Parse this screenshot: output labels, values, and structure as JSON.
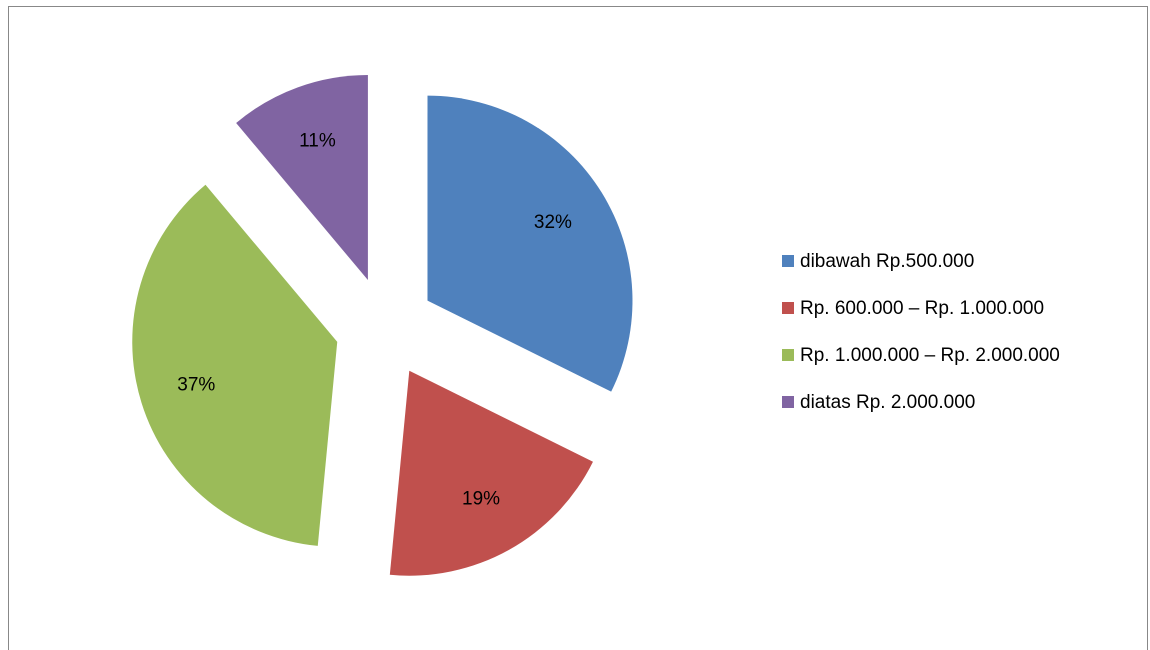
{
  "chart_data": {
    "type": "pie",
    "categories": [
      "dibawah Rp.500.000",
      "Rp. 600.000 – Rp. 1.000.000",
      "Rp. 1.000.000 – Rp. 2.000.000",
      "diatas Rp. 2.000.000"
    ],
    "values": [
      32,
      19,
      37,
      11
    ],
    "value_labels": [
      "32%",
      "19%",
      "37%",
      "11%"
    ],
    "colors": [
      "#4f81bd",
      "#c0504d",
      "#9bbb59",
      "#8064a2"
    ],
    "legend": "right"
  }
}
